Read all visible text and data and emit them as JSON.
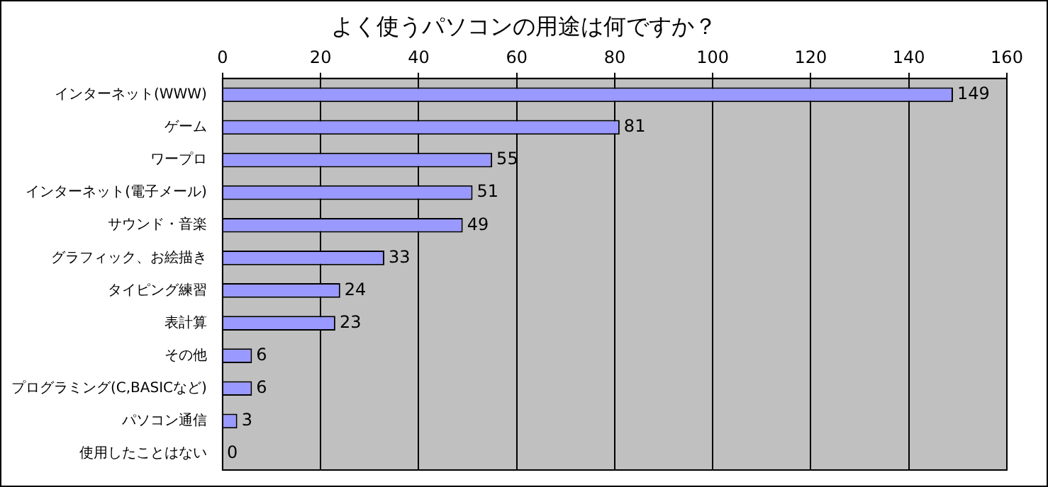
{
  "chart_data": {
    "type": "bar",
    "orientation": "horizontal",
    "title": "よく使うパソコンの用途は何ですか？",
    "categories": [
      "インターネット(WWW)",
      "ゲーム",
      "ワープロ",
      "インターネット(電子メール)",
      "サウンド・音楽",
      "グラフィック、お絵描き",
      "タイピング練習",
      "表計算",
      "その他",
      "プログラミング(C,BASICなど)",
      "パソコン通信",
      "使用したことはない"
    ],
    "values": [
      149,
      81,
      55,
      51,
      49,
      33,
      24,
      23,
      6,
      6,
      3,
      0
    ],
    "color": "#9999ff",
    "xlim": [
      0,
      160
    ],
    "xticks": [
      0,
      20,
      40,
      60,
      80,
      100,
      120,
      140,
      160
    ],
    "grid": "x",
    "data_labels": true,
    "legend": false
  }
}
